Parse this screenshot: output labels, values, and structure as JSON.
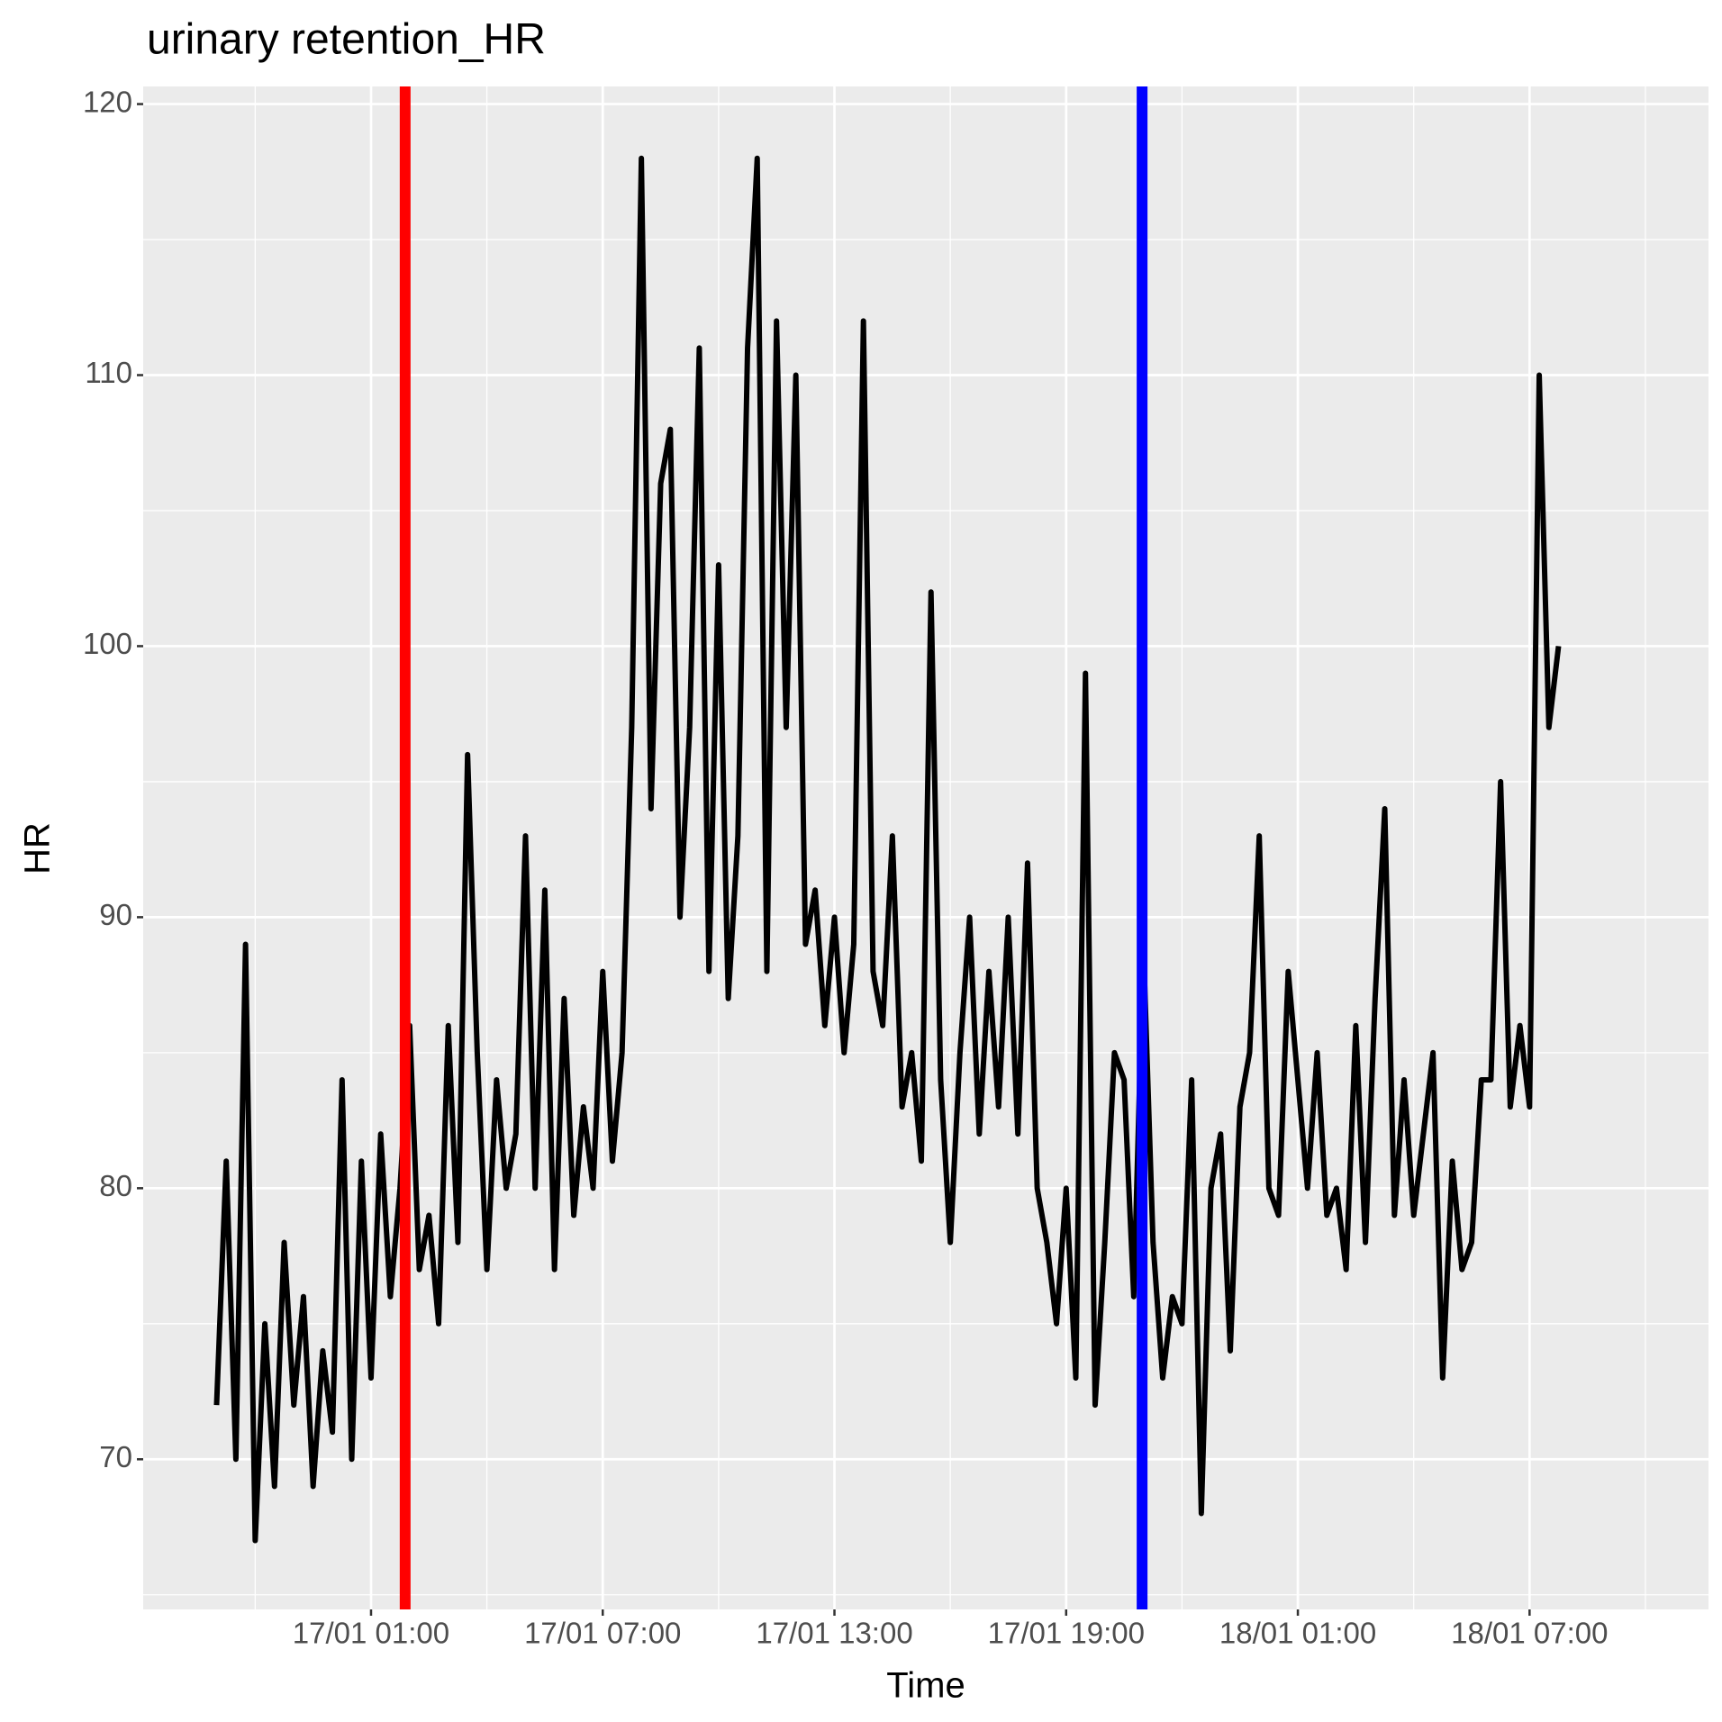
{
  "chart_data": {
    "type": "line",
    "title": "urinary retention_HR",
    "x_label": "Time",
    "y_label": "HR",
    "x": [
      "16/01 21:00",
      "16/01 21:15",
      "16/01 21:30",
      "16/01 21:45",
      "16/01 22:00",
      "16/01 22:15",
      "16/01 22:30",
      "16/01 22:45",
      "16/01 23:00",
      "16/01 23:15",
      "16/01 23:30",
      "16/01 23:45",
      "17/01 00:00",
      "17/01 00:15",
      "17/01 00:30",
      "17/01 00:45",
      "17/01 01:00",
      "17/01 01:15",
      "17/01 01:30",
      "17/01 01:45",
      "17/01 02:00",
      "17/01 02:15",
      "17/01 02:30",
      "17/01 02:45",
      "17/01 03:00",
      "17/01 03:15",
      "17/01 03:30",
      "17/01 03:45",
      "17/01 04:00",
      "17/01 04:15",
      "17/01 04:30",
      "17/01 04:45",
      "17/01 05:00",
      "17/01 05:15",
      "17/01 05:30",
      "17/01 05:45",
      "17/01 06:00",
      "17/01 06:15",
      "17/01 06:30",
      "17/01 06:45",
      "17/01 07:00",
      "17/01 07:15",
      "17/01 07:30",
      "17/01 07:45",
      "17/01 08:00",
      "17/01 08:15",
      "17/01 08:30",
      "17/01 08:45",
      "17/01 09:00",
      "17/01 09:15",
      "17/01 09:30",
      "17/01 09:45",
      "17/01 10:00",
      "17/01 10:15",
      "17/01 10:30",
      "17/01 10:45",
      "17/01 11:00",
      "17/01 11:15",
      "17/01 11:30",
      "17/01 11:45",
      "17/01 12:00",
      "17/01 12:15",
      "17/01 12:30",
      "17/01 12:45",
      "17/01 13:00",
      "17/01 13:15",
      "17/01 13:30",
      "17/01 13:45",
      "17/01 14:00",
      "17/01 14:15",
      "17/01 14:30",
      "17/01 14:45",
      "17/01 15:00",
      "17/01 15:15",
      "17/01 15:30",
      "17/01 15:45",
      "17/01 16:00",
      "17/01 16:15",
      "17/01 16:30",
      "17/01 16:45",
      "17/01 17:00",
      "17/01 17:15",
      "17/01 17:30",
      "17/01 17:45",
      "17/01 18:00",
      "17/01 18:15",
      "17/01 18:30",
      "17/01 18:45",
      "17/01 19:00",
      "17/01 19:15",
      "17/01 19:30",
      "17/01 19:45",
      "17/01 20:00",
      "17/01 20:15",
      "17/01 20:30",
      "17/01 20:45",
      "17/01 21:00",
      "17/01 21:15",
      "17/01 21:30",
      "17/01 21:45",
      "17/01 22:00",
      "17/01 22:15",
      "17/01 22:30",
      "17/01 22:45",
      "17/01 23:00",
      "17/01 23:15",
      "17/01 23:30",
      "17/01 23:45",
      "18/01 00:00",
      "18/01 00:15",
      "18/01 00:30",
      "18/01 00:45",
      "18/01 01:00",
      "18/01 01:15",
      "18/01 01:30",
      "18/01 01:45",
      "18/01 02:00",
      "18/01 02:15",
      "18/01 02:30",
      "18/01 02:45",
      "18/01 03:00",
      "18/01 03:15",
      "18/01 03:30",
      "18/01 03:45",
      "18/01 04:00",
      "18/01 04:15",
      "18/01 04:30",
      "18/01 04:45",
      "18/01 05:00",
      "18/01 05:15",
      "18/01 05:30",
      "18/01 05:45",
      "18/01 06:00",
      "18/01 06:15",
      "18/01 06:30",
      "18/01 06:45",
      "18/01 07:00",
      "18/01 07:15",
      "18/01 07:30",
      "18/01 07:45"
    ],
    "series": [
      {
        "color": "#000000",
        "values": [
          72,
          81,
          70,
          89,
          67,
          75,
          69,
          78,
          72,
          76,
          69,
          74,
          71,
          84,
          70,
          81,
          73,
          82,
          76,
          80,
          86,
          77,
          79,
          75,
          86,
          78,
          96,
          85,
          77,
          84,
          80,
          82,
          93,
          80,
          91,
          77,
          87,
          79,
          83,
          80,
          88,
          81,
          85,
          97,
          118,
          94,
          106,
          108,
          90,
          97,
          111,
          88,
          103,
          87,
          93,
          111,
          118,
          88,
          112,
          97,
          110,
          89,
          91,
          86,
          90,
          85,
          89,
          112,
          88,
          86,
          93,
          83,
          85,
          81,
          102,
          84,
          78,
          85,
          90,
          82,
          88,
          83,
          90,
          82,
          92,
          80,
          78,
          75,
          80,
          73,
          99,
          72,
          78,
          85,
          84,
          76,
          89,
          78,
          73,
          76,
          75,
          84,
          68,
          80,
          82,
          74,
          83,
          85,
          93,
          80,
          79,
          88,
          84,
          80,
          85,
          79,
          80,
          77,
          86,
          78,
          87,
          94,
          79,
          84,
          79,
          82,
          85,
          73,
          81,
          77,
          78,
          84,
          84,
          95,
          83,
          86,
          83,
          110,
          97,
          100
        ]
      }
    ],
    "vlines": [
      {
        "x": "17/01 01:53",
        "color": "#ff0000"
      },
      {
        "x": "17/01 20:58",
        "color": "#0000ff"
      }
    ],
    "xlim": [
      "16/01 19:06",
      "18/01 11:38"
    ],
    "xticks": [
      "17/01 01:00",
      "17/01 07:00",
      "17/01 13:00",
      "17/01 19:00",
      "18/01 01:00",
      "18/01 07:00"
    ],
    "ylim": [
      64.46,
      120.65
    ],
    "yticks": [
      70,
      80,
      90,
      100,
      110,
      120
    ],
    "grid": true
  }
}
